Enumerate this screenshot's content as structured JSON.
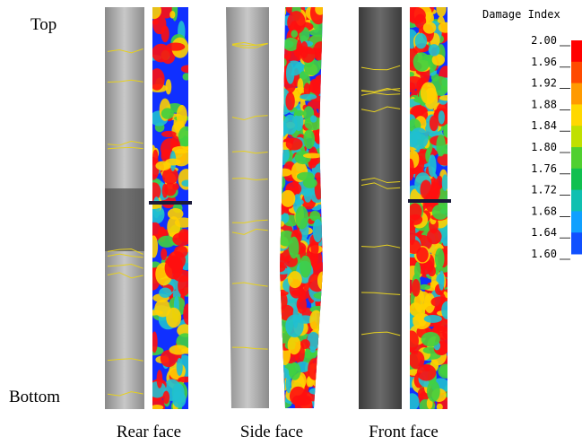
{
  "labels": {
    "top": "Top",
    "bottom": "Bottom"
  },
  "panels": [
    {
      "caption": "Rear face"
    },
    {
      "caption": "Side face"
    },
    {
      "caption": "Front face"
    }
  ],
  "colorbar": {
    "title": "Damage Index",
    "ticks": [
      "2.00",
      "1.96",
      "1.92",
      "1.88",
      "1.84",
      "1.80",
      "1.76",
      "1.72",
      "1.68",
      "1.64",
      "1.60"
    ]
  }
}
